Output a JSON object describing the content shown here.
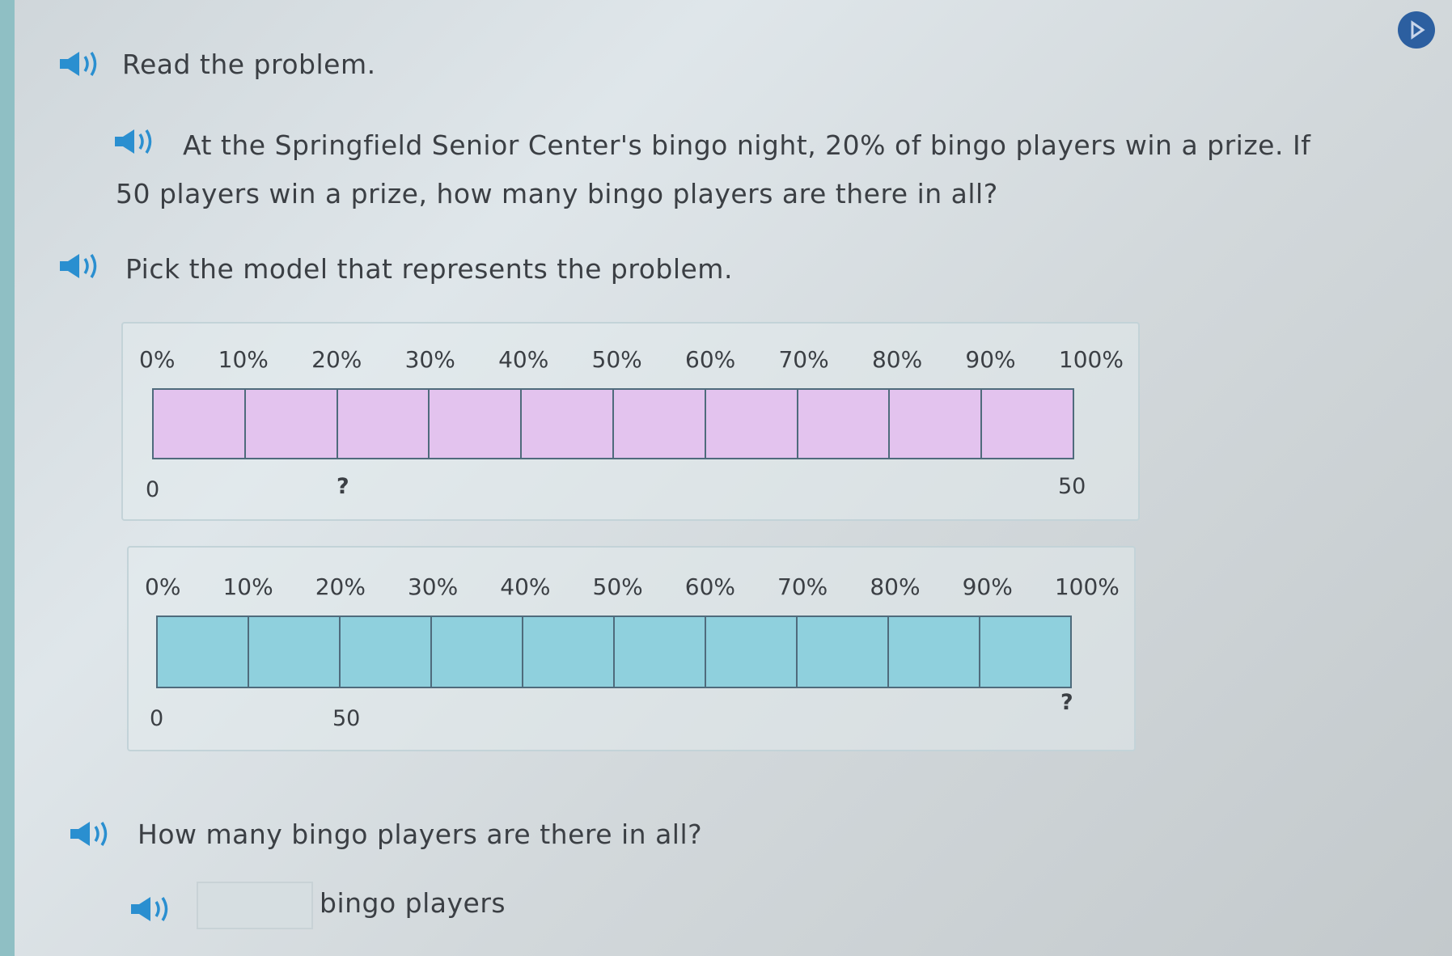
{
  "instructions": {
    "read": "Read the problem.",
    "pick": "Pick the model that represents the problem."
  },
  "problem": {
    "line1": "At the Springfield Senior Center's bingo night, 20% of bingo players win a prize. If",
    "line2": "50 players win a prize, how many bingo players are there in all?"
  },
  "percent_labels": [
    "0%",
    "10%",
    "20%",
    "30%",
    "40%",
    "50%",
    "60%",
    "70%",
    "80%",
    "90%",
    "100%"
  ],
  "model_a": {
    "fill_color": "#e6c4ef",
    "labels": {
      "zero": "0",
      "question": "?",
      "end": "50"
    }
  },
  "model_b": {
    "fill_color": "#8fd0dd",
    "labels": {
      "zero": "0",
      "tenth": "50",
      "question": "?"
    }
  },
  "question": "How many bingo players are there in all?",
  "answer": {
    "value": "",
    "unit": "bingo players"
  },
  "icons": {
    "speaker": "speaker-icon",
    "play": "play-circle-icon"
  },
  "colors": {
    "speaker": "#2a8fd0",
    "accent": "#2c5fa0"
  }
}
